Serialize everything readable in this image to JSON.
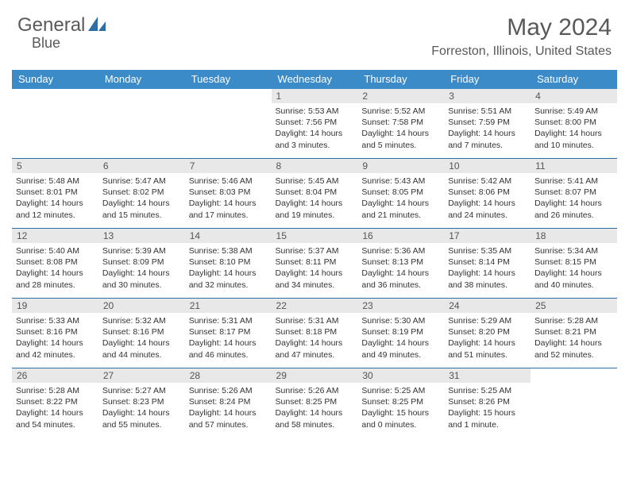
{
  "logo": {
    "text_left": "General",
    "text_right": "Blue"
  },
  "header": {
    "month_title": "May 2024",
    "location": "Forreston, Illinois, United States"
  },
  "colors": {
    "header_bg": "#3b8bc9",
    "header_text": "#ffffff",
    "row_border": "#2f6ea3",
    "daynum_bg": "#e8e8e8",
    "daynum_text": "#555555",
    "body_text": "#333333",
    "title_text": "#595959",
    "logo_text": "#5a5a5a",
    "logo_accent": "#2f6ea3"
  },
  "weekdays": [
    "Sunday",
    "Monday",
    "Tuesday",
    "Wednesday",
    "Thursday",
    "Friday",
    "Saturday"
  ],
  "weeks": [
    [
      null,
      null,
      null,
      {
        "n": "1",
        "sunrise": "5:53 AM",
        "sunset": "7:56 PM",
        "daylight": "14 hours and 3 minutes."
      },
      {
        "n": "2",
        "sunrise": "5:52 AM",
        "sunset": "7:58 PM",
        "daylight": "14 hours and 5 minutes."
      },
      {
        "n": "3",
        "sunrise": "5:51 AM",
        "sunset": "7:59 PM",
        "daylight": "14 hours and 7 minutes."
      },
      {
        "n": "4",
        "sunrise": "5:49 AM",
        "sunset": "8:00 PM",
        "daylight": "14 hours and 10 minutes."
      }
    ],
    [
      {
        "n": "5",
        "sunrise": "5:48 AM",
        "sunset": "8:01 PM",
        "daylight": "14 hours and 12 minutes."
      },
      {
        "n": "6",
        "sunrise": "5:47 AM",
        "sunset": "8:02 PM",
        "daylight": "14 hours and 15 minutes."
      },
      {
        "n": "7",
        "sunrise": "5:46 AM",
        "sunset": "8:03 PM",
        "daylight": "14 hours and 17 minutes."
      },
      {
        "n": "8",
        "sunrise": "5:45 AM",
        "sunset": "8:04 PM",
        "daylight": "14 hours and 19 minutes."
      },
      {
        "n": "9",
        "sunrise": "5:43 AM",
        "sunset": "8:05 PM",
        "daylight": "14 hours and 21 minutes."
      },
      {
        "n": "10",
        "sunrise": "5:42 AM",
        "sunset": "8:06 PM",
        "daylight": "14 hours and 24 minutes."
      },
      {
        "n": "11",
        "sunrise": "5:41 AM",
        "sunset": "8:07 PM",
        "daylight": "14 hours and 26 minutes."
      }
    ],
    [
      {
        "n": "12",
        "sunrise": "5:40 AM",
        "sunset": "8:08 PM",
        "daylight": "14 hours and 28 minutes."
      },
      {
        "n": "13",
        "sunrise": "5:39 AM",
        "sunset": "8:09 PM",
        "daylight": "14 hours and 30 minutes."
      },
      {
        "n": "14",
        "sunrise": "5:38 AM",
        "sunset": "8:10 PM",
        "daylight": "14 hours and 32 minutes."
      },
      {
        "n": "15",
        "sunrise": "5:37 AM",
        "sunset": "8:11 PM",
        "daylight": "14 hours and 34 minutes."
      },
      {
        "n": "16",
        "sunrise": "5:36 AM",
        "sunset": "8:13 PM",
        "daylight": "14 hours and 36 minutes."
      },
      {
        "n": "17",
        "sunrise": "5:35 AM",
        "sunset": "8:14 PM",
        "daylight": "14 hours and 38 minutes."
      },
      {
        "n": "18",
        "sunrise": "5:34 AM",
        "sunset": "8:15 PM",
        "daylight": "14 hours and 40 minutes."
      }
    ],
    [
      {
        "n": "19",
        "sunrise": "5:33 AM",
        "sunset": "8:16 PM",
        "daylight": "14 hours and 42 minutes."
      },
      {
        "n": "20",
        "sunrise": "5:32 AM",
        "sunset": "8:16 PM",
        "daylight": "14 hours and 44 minutes."
      },
      {
        "n": "21",
        "sunrise": "5:31 AM",
        "sunset": "8:17 PM",
        "daylight": "14 hours and 46 minutes."
      },
      {
        "n": "22",
        "sunrise": "5:31 AM",
        "sunset": "8:18 PM",
        "daylight": "14 hours and 47 minutes."
      },
      {
        "n": "23",
        "sunrise": "5:30 AM",
        "sunset": "8:19 PM",
        "daylight": "14 hours and 49 minutes."
      },
      {
        "n": "24",
        "sunrise": "5:29 AM",
        "sunset": "8:20 PM",
        "daylight": "14 hours and 51 minutes."
      },
      {
        "n": "25",
        "sunrise": "5:28 AM",
        "sunset": "8:21 PM",
        "daylight": "14 hours and 52 minutes."
      }
    ],
    [
      {
        "n": "26",
        "sunrise": "5:28 AM",
        "sunset": "8:22 PM",
        "daylight": "14 hours and 54 minutes."
      },
      {
        "n": "27",
        "sunrise": "5:27 AM",
        "sunset": "8:23 PM",
        "daylight": "14 hours and 55 minutes."
      },
      {
        "n": "28",
        "sunrise": "5:26 AM",
        "sunset": "8:24 PM",
        "daylight": "14 hours and 57 minutes."
      },
      {
        "n": "29",
        "sunrise": "5:26 AM",
        "sunset": "8:25 PM",
        "daylight": "14 hours and 58 minutes."
      },
      {
        "n": "30",
        "sunrise": "5:25 AM",
        "sunset": "8:25 PM",
        "daylight": "15 hours and 0 minutes."
      },
      {
        "n": "31",
        "sunrise": "5:25 AM",
        "sunset": "8:26 PM",
        "daylight": "15 hours and 1 minute."
      },
      null
    ]
  ],
  "labels": {
    "sunrise": "Sunrise:",
    "sunset": "Sunset:",
    "daylight": "Daylight:"
  }
}
